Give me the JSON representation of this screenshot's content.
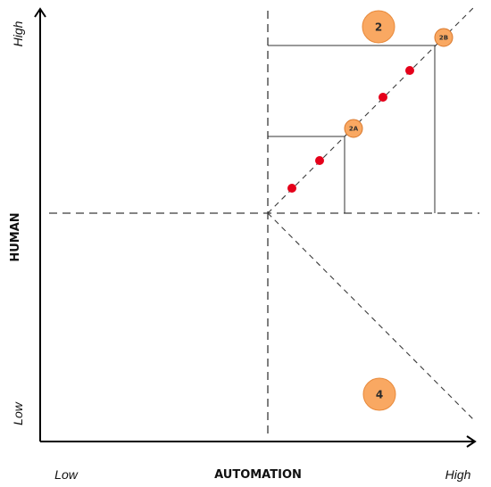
{
  "axes": {
    "y_title": "HUMAN",
    "y_high": "High",
    "y_low": "Low",
    "x_title": "AUTOMATION",
    "x_low": "Low",
    "x_high": "High"
  },
  "nodes": {
    "n2": "2",
    "n2a": "2A",
    "n2b": "2B",
    "n4": "4"
  },
  "colors": {
    "node_fill": "#F9A862",
    "dot_fill": "#E5001A"
  }
}
